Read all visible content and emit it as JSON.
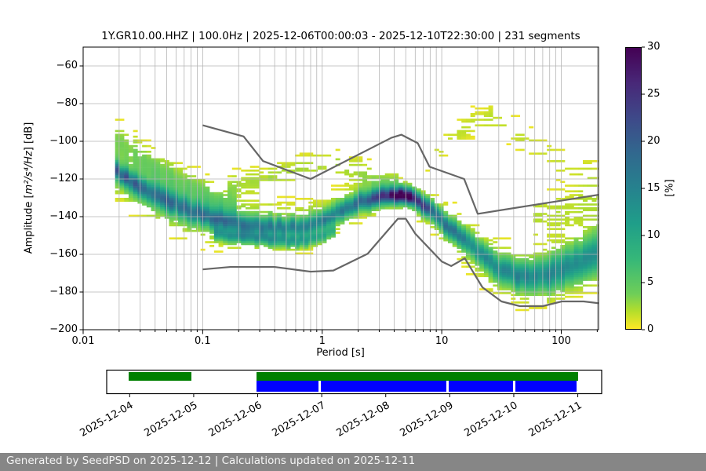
{
  "footer": {
    "text": "Generated by SeedPSD on 2025-12-12 | Calculations updated on 2025-12-11",
    "bg_color": "#868686",
    "text_color": "#f5f5f5"
  },
  "chart_data": {
    "type": "heatmap",
    "title": "1Y.GR10.00.HHZ | 100.0Hz | 2025-12-06T00:00:03 - 2025-12-10T22:30:00 | 231 segments",
    "xlabel": "Period [s]",
    "ylabel_prefix": "Amplitude [",
    "ylabel_math": "m²/s⁴/Hz",
    "ylabel_suffix": "] [dB]",
    "xscale": "log",
    "xlim": [
      0.01,
      205
    ],
    "ylim": [
      -200,
      -50
    ],
    "grid": true,
    "xticks": [
      {
        "v": 0.01,
        "label": "0.01"
      },
      {
        "v": 0.1,
        "label": "0.1"
      },
      {
        "v": 1,
        "label": "1"
      },
      {
        "v": 10,
        "label": "10"
      },
      {
        "v": 100,
        "label": "100"
      }
    ],
    "yticks": [
      {
        "v": -60,
        "label": "−60"
      },
      {
        "v": -80,
        "label": "−80"
      },
      {
        "v": -100,
        "label": "−100"
      },
      {
        "v": -120,
        "label": "−120"
      },
      {
        "v": -140,
        "label": "−140"
      },
      {
        "v": -160,
        "label": "−160"
      },
      {
        "v": -180,
        "label": "−180"
      },
      {
        "v": -200,
        "label": "−200"
      }
    ],
    "colorbar": {
      "label": "[%]",
      "min": 0,
      "max": 30,
      "colormap": "viridis_r",
      "ticks": [
        {
          "v": 0,
          "label": "0"
        },
        {
          "v": 5,
          "label": "5"
        },
        {
          "v": 10,
          "label": "10"
        },
        {
          "v": 15,
          "label": "15"
        },
        {
          "v": 20,
          "label": "20"
        },
        {
          "v": 25,
          "label": "25"
        },
        {
          "v": 30,
          "label": "30"
        }
      ]
    },
    "colors": {
      "noise_model": "#666666",
      "grid": "#b5b5b5",
      "psd_coverage": "#008000",
      "data_availability": "#0000ff"
    },
    "noise_models": {
      "high": [
        [
          0.1,
          -91.5
        ],
        [
          0.22,
          -97.4
        ],
        [
          0.32,
          -110.5
        ],
        [
          0.8,
          -120.0
        ],
        [
          3.8,
          -98.1
        ],
        [
          4.6,
          -96.5
        ],
        [
          6.3,
          -101.0
        ],
        [
          7.9,
          -113.5
        ],
        [
          15.4,
          -120.0
        ],
        [
          20.0,
          -138.5
        ],
        [
          354.8,
          -126.0
        ]
      ],
      "low": [
        [
          0.1,
          -168.0
        ],
        [
          0.17,
          -166.7
        ],
        [
          0.4,
          -166.7
        ],
        [
          0.8,
          -169.2
        ],
        [
          1.24,
          -168.6
        ],
        [
          2.4,
          -159.7
        ],
        [
          4.3,
          -141.1
        ],
        [
          5.0,
          -141.1
        ],
        [
          6.0,
          -149.0
        ],
        [
          10.0,
          -163.8
        ],
        [
          12.0,
          -166.2
        ],
        [
          15.6,
          -162.1
        ],
        [
          21.9,
          -177.5
        ],
        [
          31.6,
          -185.0
        ],
        [
          45.0,
          -187.5
        ],
        [
          70.0,
          -187.5
        ],
        [
          101.0,
          -185.0
        ],
        [
          154.0,
          -185.0
        ],
        [
          328.0,
          -187.5
        ]
      ]
    },
    "density": {
      "period_range": [
        0.0185,
        205
      ],
      "period_step_octaves": 0.125,
      "db_bin_width": 1,
      "components": [
        {
          "name": "main-band",
          "mode": [
            [
              0.0185,
              -115
            ],
            [
              0.025,
              -121.5
            ],
            [
              0.035,
              -127.5
            ],
            [
              0.05,
              -131.5
            ],
            [
              0.08,
              -137
            ],
            [
              0.13,
              -141.5
            ],
            [
              0.22,
              -144
            ],
            [
              0.4,
              -145.5
            ],
            [
              0.7,
              -145.5
            ],
            [
              1.0,
              -142.5
            ],
            [
              1.5,
              -136
            ],
            [
              2.2,
              -131.5
            ],
            [
              3.0,
              -129.5
            ],
            [
              4.2,
              -128.6
            ],
            [
              5.2,
              -129.3
            ],
            [
              6.2,
              -131.5
            ],
            [
              7.5,
              -135
            ],
            [
              9,
              -139.5
            ],
            [
              11,
              -144.5
            ],
            [
              14,
              -150
            ],
            [
              18,
              -156
            ],
            [
              24,
              -163
            ],
            [
              32,
              -168.5
            ],
            [
              45,
              -171.5
            ],
            [
              60,
              -172
            ],
            [
              80,
              -170.5
            ],
            [
              110,
              -167
            ],
            [
              150,
              -163.5
            ],
            [
              205,
              -159
            ]
          ],
          "sigma": [
            [
              0.0185,
              2.8
            ],
            [
              0.04,
              3.5
            ],
            [
              0.08,
              3.5
            ],
            [
              0.15,
              3
            ],
            [
              0.4,
              2.8
            ],
            [
              0.9,
              2.8
            ],
            [
              1.5,
              3
            ],
            [
              2.5,
              2.8
            ],
            [
              4,
              2.6
            ],
            [
              6,
              2.6
            ],
            [
              8,
              3
            ],
            [
              12,
              3.2
            ],
            [
              18,
              3.5
            ],
            [
              30,
              4
            ],
            [
              50,
              4.5
            ],
            [
              90,
              5.5
            ],
            [
              140,
              6
            ],
            [
              205,
              6.5
            ]
          ],
          "peak": [
            [
              0.0185,
              16
            ],
            [
              0.03,
              14
            ],
            [
              0.06,
              13
            ],
            [
              0.12,
              13
            ],
            [
              0.25,
              12
            ],
            [
              0.5,
              11
            ],
            [
              0.9,
              11
            ],
            [
              1.4,
              12
            ],
            [
              2.2,
              15
            ],
            [
              3,
              19
            ],
            [
              3.8,
              24
            ],
            [
              4.3,
              28
            ],
            [
              4.9,
              30
            ],
            [
              5.6,
              27
            ],
            [
              6.4,
              21
            ],
            [
              7.5,
              17
            ],
            [
              9,
              15
            ],
            [
              11,
              13.5
            ],
            [
              14,
              12.5
            ],
            [
              18,
              11
            ],
            [
              25,
              10.5
            ],
            [
              40,
              11
            ],
            [
              60,
              11
            ],
            [
              90,
              10.5
            ],
            [
              140,
              9.5
            ],
            [
              205,
              9
            ]
          ]
        },
        {
          "name": "secondary-band",
          "mode": [
            [
              0.12,
              -148
            ],
            [
              0.2,
              -150.5
            ],
            [
              0.35,
              -152
            ],
            [
              0.6,
              -153
            ],
            [
              0.9,
              -152
            ],
            [
              1.3,
              -147
            ]
          ],
          "sigma": 2.2,
          "peak": [
            [
              0.12,
              8
            ],
            [
              0.25,
              10
            ],
            [
              0.6,
              9
            ],
            [
              1.0,
              8
            ],
            [
              1.3,
              6
            ]
          ]
        },
        {
          "name": "halo",
          "mode": [
            [
              0.0185,
              -115
            ],
            [
              0.025,
              -121.5
            ],
            [
              0.035,
              -127.5
            ],
            [
              0.05,
              -131.5
            ],
            [
              0.08,
              -137
            ],
            [
              0.13,
              -141.5
            ],
            [
              0.22,
              -144
            ],
            [
              0.4,
              -145.5
            ],
            [
              0.7,
              -145.5
            ],
            [
              1.0,
              -142.5
            ],
            [
              1.5,
              -136
            ],
            [
              2.2,
              -131.5
            ],
            [
              3.0,
              -129.5
            ],
            [
              4.2,
              -128.6
            ],
            [
              5.2,
              -129.3
            ],
            [
              6.2,
              -131.5
            ],
            [
              7.5,
              -135
            ],
            [
              9,
              -139.5
            ],
            [
              11,
              -144.5
            ],
            [
              14,
              -150
            ],
            [
              18,
              -156
            ],
            [
              24,
              -163
            ],
            [
              32,
              -168.5
            ],
            [
              45,
              -171.5
            ],
            [
              60,
              -172
            ],
            [
              80,
              -170.5
            ],
            [
              110,
              -167
            ],
            [
              150,
              -163.5
            ],
            [
              205,
              -159
            ]
          ],
          "sigma": [
            [
              0.0185,
              8
            ],
            [
              0.05,
              9
            ],
            [
              0.1,
              8.5
            ],
            [
              0.3,
              8
            ],
            [
              1,
              7
            ],
            [
              3,
              6
            ],
            [
              5,
              5
            ],
            [
              8,
              6
            ],
            [
              15,
              8
            ],
            [
              30,
              9
            ],
            [
              60,
              9.5
            ],
            [
              120,
              10
            ],
            [
              205,
              11
            ]
          ],
          "peak": [
            [
              0.0185,
              4.5
            ],
            [
              0.1,
              4.5
            ],
            [
              1,
              4
            ],
            [
              5,
              4
            ],
            [
              20,
              3.5
            ],
            [
              205,
              3.5
            ]
          ]
        },
        {
          "name": "upper-left-fan",
          "mode": [
            [
              0.0185,
              -97
            ],
            [
              0.025,
              -104
            ],
            [
              0.035,
              -111
            ],
            [
              0.05,
              -117
            ],
            [
              0.08,
              -124
            ],
            [
              0.12,
              -131
            ],
            [
              0.2,
              -139
            ]
          ],
          "sigma": 6,
          "peak": 3
        },
        {
          "name": "mid-wings",
          "mode": [
            [
              0.16,
              -124
            ],
            [
              0.3,
              -121
            ],
            [
              0.5,
              -117
            ],
            [
              0.8,
              -113
            ],
            [
              1.3,
              -112
            ],
            [
              2,
              -116
            ],
            [
              3,
              -120
            ],
            [
              4.5,
              -124
            ]
          ],
          "sigma": 5,
          "peak": 2.2
        },
        {
          "name": "long-period-hump",
          "mode": [
            [
              7,
              -113
            ],
            [
              10,
              -104
            ],
            [
              14,
              -96
            ],
            [
              19,
              -90
            ],
            [
              25,
              -88
            ],
            [
              33,
              -91
            ],
            [
              45,
              -97
            ],
            [
              65,
              -104
            ],
            [
              95,
              -110
            ],
            [
              140,
              -115
            ],
            [
              205,
              -119
            ]
          ],
          "sigma": [
            [
              7,
              4
            ],
            [
              15,
              5
            ],
            [
              25,
              5
            ],
            [
              60,
              6
            ],
            [
              205,
              7
            ]
          ],
          "peak": [
            [
              7,
              1.2
            ],
            [
              12,
              1.5
            ],
            [
              20,
              1.6
            ],
            [
              30,
              1.6
            ],
            [
              60,
              1.4
            ],
            [
              120,
              1.3
            ],
            [
              205,
              1.2
            ]
          ]
        },
        {
          "name": "right-fill",
          "mode": [
            [
              60,
              -140
            ],
            [
              100,
              -138
            ],
            [
              150,
              -135
            ],
            [
              205,
              -133
            ]
          ],
          "sigma": 9,
          "peak": 1.8
        }
      ]
    },
    "availability": {
      "axis_days": [
        -0.359,
        7.373
      ],
      "date_ticks": [
        {
          "day": 0,
          "label": "2025-12-04"
        },
        {
          "day": 1,
          "label": "2025-12-05"
        },
        {
          "day": 2,
          "label": "2025-12-06"
        },
        {
          "day": 3,
          "label": "2025-12-07"
        },
        {
          "day": 4,
          "label": "2025-12-08"
        },
        {
          "day": 5,
          "label": "2025-12-09"
        },
        {
          "day": 6,
          "label": "2025-12-10"
        },
        {
          "day": 7,
          "label": "2025-12-11"
        }
      ],
      "psd_segments": [
        [
          -0.02,
          0.963
        ],
        [
          1.98,
          7.0
        ]
      ],
      "data_segments": [
        [
          1.98,
          2.948
        ],
        [
          2.985,
          4.947
        ],
        [
          4.984,
          5.983
        ],
        [
          6.02,
          6.98
        ]
      ]
    }
  }
}
